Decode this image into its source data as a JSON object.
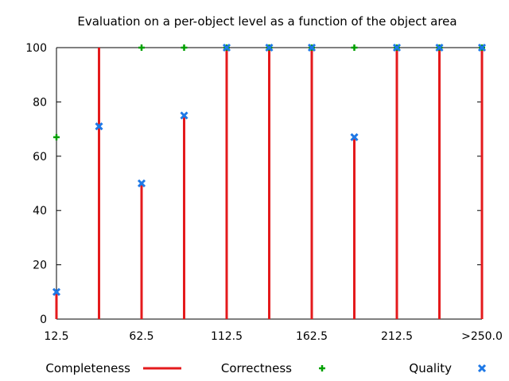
{
  "chart_data": {
    "type": "line",
    "title": "Evaluation on a per-object level as a function of the object area",
    "xlabel": "",
    "ylabel": "",
    "ylim": [
      0,
      100
    ],
    "yticks": [
      0,
      20,
      40,
      60,
      80,
      100
    ],
    "xticks": [
      "12.5",
      "62.5",
      "112.5",
      "162.5",
      "212.5",
      ">250.0"
    ],
    "categories": [
      "12.5",
      "37.5",
      "62.5",
      "87.5",
      "112.5",
      "137.5",
      "162.5",
      "187.5",
      "212.5",
      "237.5",
      ">250.0"
    ],
    "grid": false,
    "legend_position": "bottom",
    "series": [
      {
        "name": "Completeness",
        "style": "impulses",
        "color": "#e41a1c",
        "values": [
          10,
          100,
          50,
          75,
          100,
          100,
          100,
          67,
          100,
          100,
          100
        ]
      },
      {
        "name": "Correctness",
        "style": "points-plus",
        "color": "#00a000",
        "values": [
          67,
          null,
          100,
          100,
          100,
          100,
          100,
          100,
          100,
          100,
          100
        ]
      },
      {
        "name": "Quality",
        "style": "points-cross",
        "color": "#1e78e6",
        "values": [
          10,
          71,
          50,
          75,
          100,
          100,
          100,
          67,
          100,
          100,
          100
        ]
      }
    ]
  }
}
